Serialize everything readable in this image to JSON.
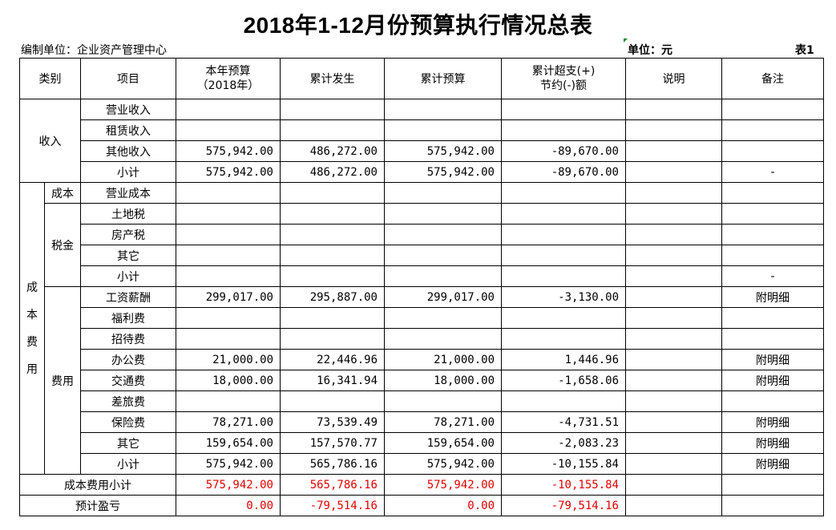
{
  "title": "2018年1-12月份预算执行情况总表",
  "org": "编制单位：企业资产管理中心",
  "unit": "单位：元",
  "table_no": "表1",
  "headers": {
    "category": "类别",
    "item": "项目",
    "budget_line1": "本年预算",
    "budget_line2": "（2018年）",
    "actual": "累计发生",
    "cum_budget": "累计预算",
    "over_line1": "累计超支(+)",
    "over_line2": "节约(-)额",
    "note": "说明",
    "remark": "备注"
  },
  "groups": {
    "income": "收入",
    "cost_fee_chars": [
      "成",
      "本",
      "费",
      "用"
    ],
    "cost": "成本",
    "tax": "税金",
    "fee": "费用",
    "cost_subtotal": "成本费用小计",
    "forecast": "预计盈亏"
  },
  "income_rows": [
    {
      "item": "营业收入",
      "budget": "",
      "actual": "",
      "cum": "",
      "diff": "",
      "note": "",
      "remark": ""
    },
    {
      "item": "租赁收入",
      "budget": "",
      "actual": "",
      "cum": "",
      "diff": "",
      "note": "",
      "remark": ""
    },
    {
      "item": "其他收入",
      "budget": "575,942.00",
      "actual": "486,272.00",
      "cum": "575,942.00",
      "diff": "-89,670.00",
      "note": "",
      "remark": ""
    },
    {
      "item": "小计",
      "budget": "575,942.00",
      "actual": "486,272.00",
      "cum": "575,942.00",
      "diff": "-89,670.00",
      "note": "",
      "remark": "-"
    }
  ],
  "cost_row": {
    "item": "营业成本",
    "budget": "",
    "actual": "",
    "cum": "",
    "diff": "",
    "note": "",
    "remark": ""
  },
  "tax_rows": [
    {
      "item": "土地税",
      "budget": "",
      "actual": "",
      "cum": "",
      "diff": "",
      "note": "",
      "remark": ""
    },
    {
      "item": "房产税",
      "budget": "",
      "actual": "",
      "cum": "",
      "diff": "",
      "note": "",
      "remark": ""
    },
    {
      "item": "其它",
      "budget": "",
      "actual": "",
      "cum": "",
      "diff": "",
      "note": "",
      "remark": ""
    },
    {
      "item": "小计",
      "budget": "",
      "actual": "",
      "cum": "",
      "diff": "",
      "note": "",
      "remark": "-"
    }
  ],
  "fee_rows": [
    {
      "item": "工资薪酬",
      "budget": "299,017.00",
      "actual": "295,887.00",
      "cum": "299,017.00",
      "diff": "-3,130.00",
      "note": "",
      "remark": "附明细"
    },
    {
      "item": "福利费",
      "budget": "",
      "actual": "",
      "cum": "",
      "diff": "",
      "note": "",
      "remark": ""
    },
    {
      "item": "招待费",
      "budget": "",
      "actual": "",
      "cum": "",
      "diff": "",
      "note": "",
      "remark": ""
    },
    {
      "item": "办公费",
      "budget": "21,000.00",
      "actual": "22,446.96",
      "cum": "21,000.00",
      "diff": "1,446.96",
      "note": "",
      "remark": "附明细"
    },
    {
      "item": "交通费",
      "budget": "18,000.00",
      "actual": "16,341.94",
      "cum": "18,000.00",
      "diff": "-1,658.06",
      "note": "",
      "remark": "附明细"
    },
    {
      "item": "差旅费",
      "budget": "",
      "actual": "",
      "cum": "",
      "diff": "",
      "note": "",
      "remark": ""
    },
    {
      "item": "保险费",
      "budget": "78,271.00",
      "actual": "73,539.49",
      "cum": "78,271.00",
      "diff": "-4,731.51",
      "note": "",
      "remark": "附明细"
    },
    {
      "item": "其它",
      "budget": "159,654.00",
      "actual": "157,570.77",
      "cum": "159,654.00",
      "diff": "-2,083.23",
      "note": "",
      "remark": "附明细"
    },
    {
      "item": "小计",
      "budget": "575,942.00",
      "actual": "565,786.16",
      "cum": "575,942.00",
      "diff": "-10,155.84",
      "note": "",
      "remark": "附明细"
    }
  ],
  "cost_subtotal_row": {
    "budget": "575,942.00",
    "actual": "565,786.16",
    "cum": "575,942.00",
    "diff": "-10,155.84",
    "note": "",
    "remark": ""
  },
  "forecast_row": {
    "budget": "0.00",
    "actual": "-79,514.16",
    "cum": "0.00",
    "diff": "-79,514.16",
    "note": "",
    "remark": ""
  },
  "colors": {
    "negative_highlight": "#e00000",
    "marker": "#0a8a2a"
  }
}
